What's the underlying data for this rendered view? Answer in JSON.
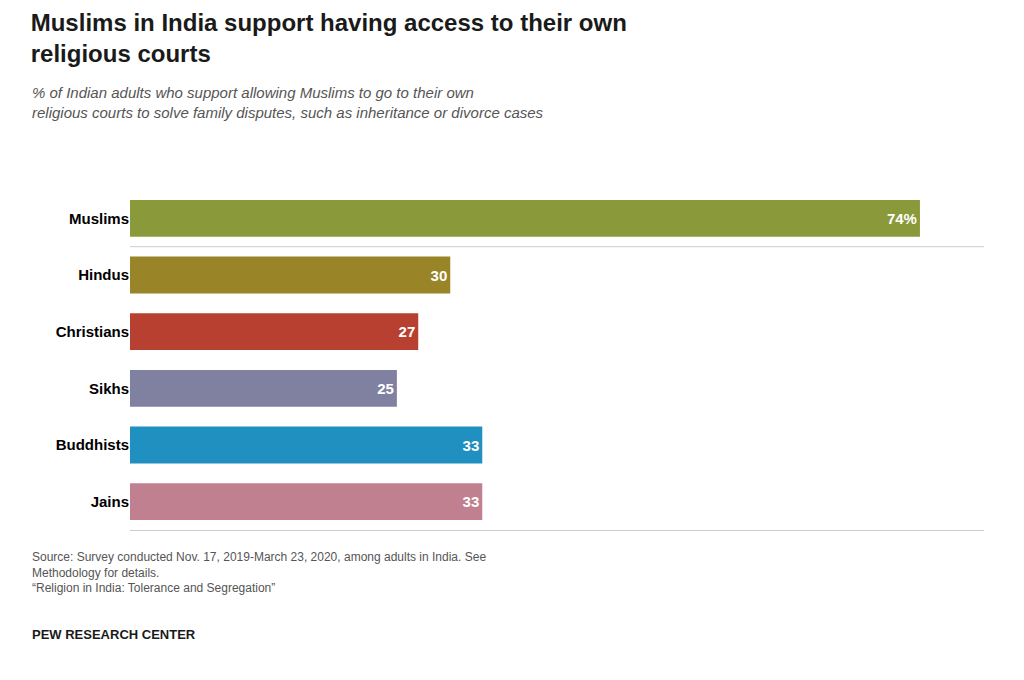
{
  "chart_data": {
    "type": "bar",
    "orientation": "horizontal",
    "title": "Muslims in India support having access to their own\nreligious courts",
    "subtitle": "% of Indian adults who support allowing Muslims to go to their own\nreligious courts to solve family disputes, such as inheritance or divorce cases",
    "categories": [
      "Muslims",
      "Hindus",
      "Christians",
      "Sikhs",
      "Buddhists",
      "Jains"
    ],
    "values": [
      74,
      30,
      27,
      25,
      33,
      33
    ],
    "value_labels": [
      "74%",
      "30",
      "27",
      "25",
      "33",
      "33"
    ],
    "colors": [
      "#8a9a3a",
      "#9a8428",
      "#b84030",
      "#8080a0",
      "#2090c0",
      "#c08090"
    ],
    "data_labels": true,
    "xlim": [
      0,
      80
    ],
    "tick_labels": "y",
    "grid": false,
    "annotations": [
      "Source: Survey conducted Nov. 17, 2019-March 23, 2020, among adults in India. See\nMethodology for details.\n“Religion in India: Tolerance and Segregation”",
      "PEW RESEARCH CENTER"
    ]
  }
}
